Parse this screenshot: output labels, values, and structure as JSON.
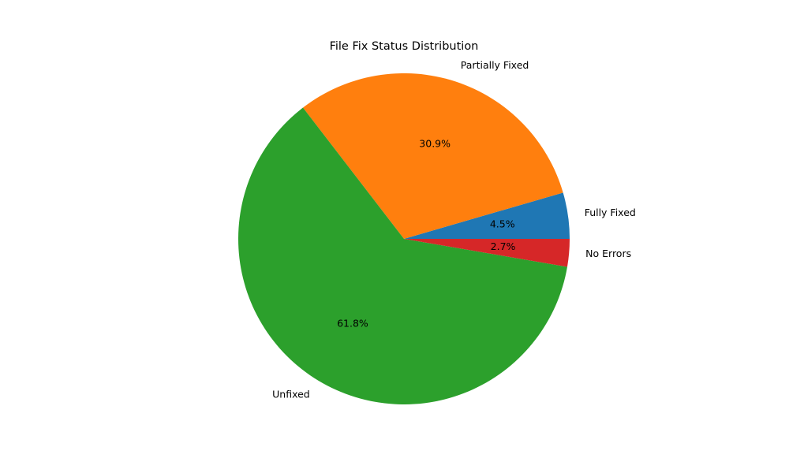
{
  "chart_data": {
    "type": "pie",
    "title": "File Fix Status Distribution",
    "start_angle_deg": 0,
    "direction": "counterclockwise",
    "slices": [
      {
        "label": "Fully Fixed",
        "value": 4.5,
        "pct_label": "4.5%",
        "color": "#1f77b4"
      },
      {
        "label": "Partially Fixed",
        "value": 30.9,
        "pct_label": "30.9%",
        "color": "#ff7f0e"
      },
      {
        "label": "Unfixed",
        "value": 61.8,
        "pct_label": "61.8%",
        "color": "#2ca02c"
      },
      {
        "label": "No Errors",
        "value": 2.7,
        "pct_label": "2.7%",
        "color": "#d62728"
      }
    ]
  }
}
